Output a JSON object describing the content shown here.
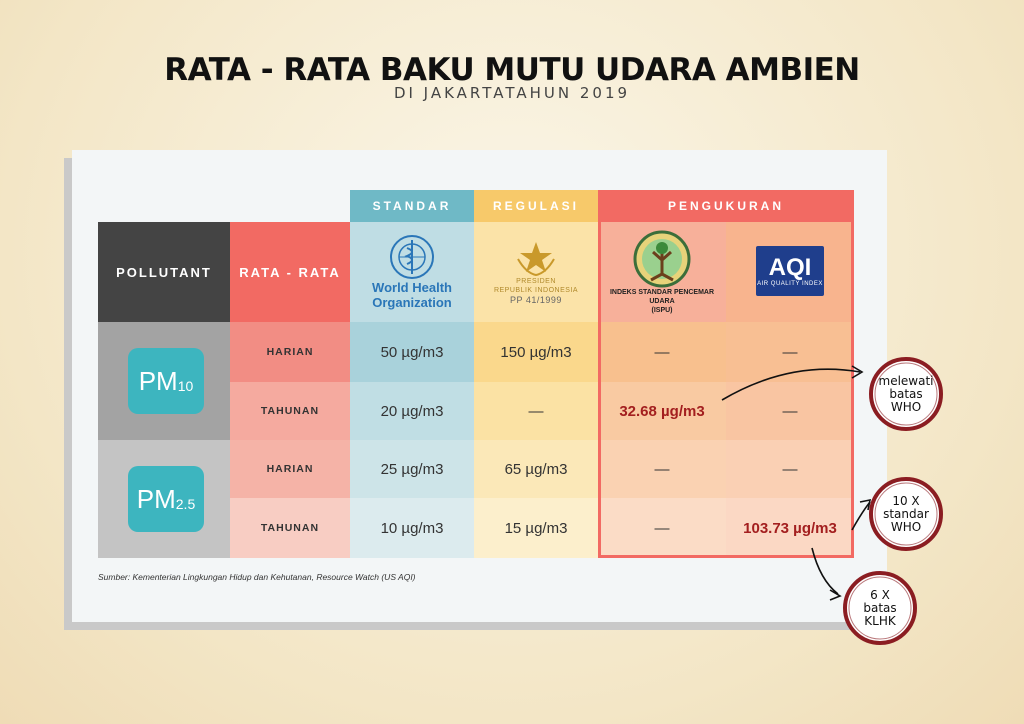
{
  "title": "RATA - RATA BAKU MUTU UDARA AMBIEN",
  "subtitle": "DI JAKARTATAHUN 2019",
  "table": {
    "headers": {
      "pollutant": "POLLUTANT",
      "rata": "RATA - RATA",
      "standar": "STANDAR",
      "regulasi": "REGULASI",
      "pengukuran": "PENGUKURAN"
    },
    "who": {
      "line1": "World Health",
      "line2": "Organization"
    },
    "presiden": {
      "line1": "PRESIDEN",
      "line2": "REPUBLIK INDONESIA",
      "pp": "PP 41/1999"
    },
    "ispu": {
      "line1": "INDEKS STANDAR PENCEMAR UDARA",
      "line2": "(ISPU)"
    },
    "aqi": {
      "logo": "AQI",
      "label": "AIR QUALITY INDEX"
    },
    "pollutants": [
      {
        "name": "PM",
        "sub": "10"
      },
      {
        "name": "PM",
        "sub": "2.5"
      }
    ]
  },
  "chart_data": {
    "type": "table",
    "title": "RATA - RATA BAKU MUTU UDARA AMBIEN",
    "subtitle": "DI JAKARTATAHUN 2019",
    "columns": [
      "POLLUTANT",
      "RATA - RATA",
      "World Health Organization",
      "PP 41/1999",
      "ISPU",
      "AQI"
    ],
    "column_groups": [
      "STANDAR",
      "REGULASI",
      "PENGUKURAN"
    ],
    "rows": [
      {
        "pollutant": "PM10",
        "period": "HARIAN",
        "who": "50 µg/m3",
        "pp": "150 µg/m3",
        "ispu": "—",
        "aqi": "—"
      },
      {
        "pollutant": "PM10",
        "period": "TAHUNAN",
        "who": "20 µg/m3",
        "pp": "—",
        "ispu": "32.68 µg/m3",
        "aqi": "—"
      },
      {
        "pollutant": "PM2.5",
        "period": "HARIAN",
        "who": "25 µg/m3",
        "pp": "65 µg/m3",
        "ispu": "—",
        "aqi": "—"
      },
      {
        "pollutant": "PM2.5",
        "period": "TAHUNAN",
        "who": "10 µg/m3",
        "pp": "15 µg/m3",
        "ispu": "—",
        "aqi": "103.73 µg/m3"
      }
    ],
    "annotations": [
      [
        "melewati",
        "batas",
        "WHO"
      ],
      [
        "10 X",
        "standar",
        "WHO"
      ],
      [
        "6 X",
        "batas",
        "KLHK"
      ]
    ]
  },
  "source": "Sumber: Kementerian Lingkungan Hidup dan Kehutanan, Resource Watch (US AQI)",
  "colors": {
    "dark": "#444444",
    "red": "#f26a63",
    "teal": "#6fb9c6",
    "yellow": "#f7c96a",
    "measure": "#f26a63",
    "pm_badge": "#3db5bf",
    "highlight": "#a31f1f"
  }
}
